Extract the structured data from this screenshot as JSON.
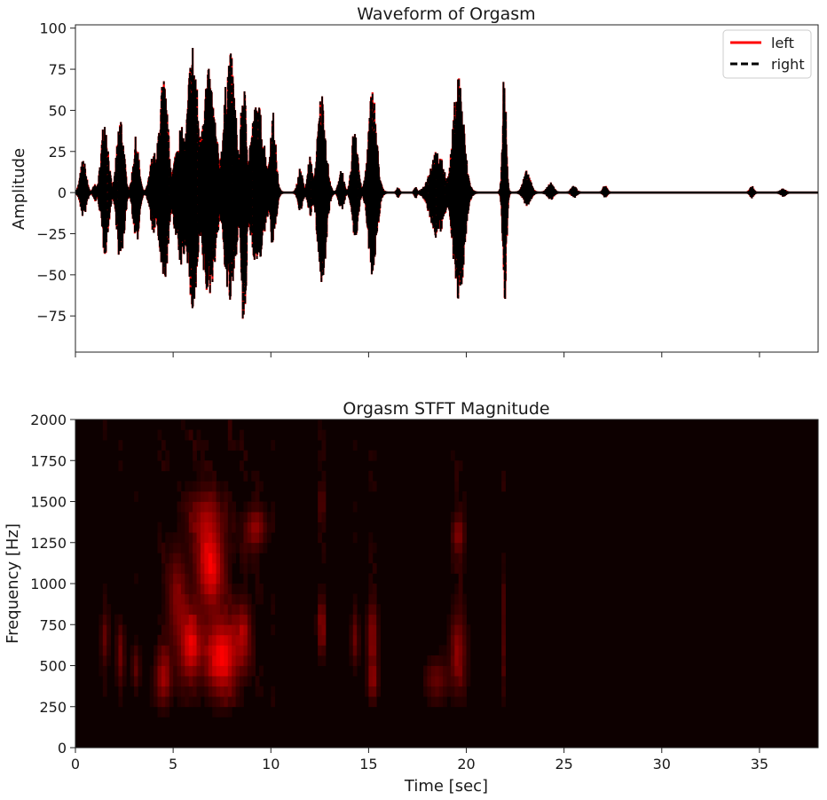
{
  "chart_data": [
    {
      "type": "line",
      "title": "Waveform of Orgasm",
      "xlabel": "",
      "ylabel": "Amplitude",
      "xlim": [
        0,
        38
      ],
      "ylim": [
        -97,
        102
      ],
      "x_ticks": [
        0,
        5,
        10,
        15,
        20,
        25,
        30,
        35
      ],
      "x_tick_labels_visible": false,
      "y_ticks": [
        100,
        75,
        50,
        25,
        0,
        -25,
        -50,
        -75
      ],
      "y_tick_labels": [
        "100",
        "75",
        "50",
        "25",
        "0",
        "−25",
        "−50",
        "−75"
      ],
      "legend": {
        "placement": "top-right",
        "entries": [
          "left",
          "right"
        ]
      },
      "grid": false,
      "series": [
        {
          "name": "left",
          "color": "#ff0000",
          "style": "solid",
          "bursts": [
            {
              "center": 0.4,
              "width": 0.25,
              "amp_pos": 20,
              "amp_neg": 15
            },
            {
              "center": 1.0,
              "width": 0.15,
              "amp_pos": 5,
              "amp_neg": 5
            },
            {
              "center": 1.5,
              "width": 0.3,
              "amp_pos": 47,
              "amp_neg": 38
            },
            {
              "center": 2.3,
              "width": 0.3,
              "amp_pos": 48,
              "amp_neg": 45
            },
            {
              "center": 3.1,
              "width": 0.25,
              "amp_pos": 34,
              "amp_neg": 33
            },
            {
              "center": 4.0,
              "width": 0.3,
              "amp_pos": 25,
              "amp_neg": 25
            },
            {
              "center": 4.5,
              "width": 0.4,
              "amp_pos": 70,
              "amp_neg": 58
            },
            {
              "center": 5.4,
              "width": 0.5,
              "amp_pos": 40,
              "amp_neg": 45
            },
            {
              "center": 6.0,
              "width": 0.45,
              "amp_pos": 93,
              "amp_neg": 75
            },
            {
              "center": 6.8,
              "width": 0.6,
              "amp_pos": 75,
              "amp_neg": 65
            },
            {
              "center": 7.9,
              "width": 0.5,
              "amp_pos": 87,
              "amp_neg": 70
            },
            {
              "center": 8.6,
              "width": 0.25,
              "amp_pos": 70,
              "amp_neg": 88
            },
            {
              "center": 9.3,
              "width": 0.6,
              "amp_pos": 55,
              "amp_neg": 45
            },
            {
              "center": 10.1,
              "width": 0.25,
              "amp_pos": 50,
              "amp_neg": 35
            },
            {
              "center": 11.5,
              "width": 0.2,
              "amp_pos": 15,
              "amp_neg": 12
            },
            {
              "center": 12.0,
              "width": 0.2,
              "amp_pos": 22,
              "amp_neg": 15
            },
            {
              "center": 12.6,
              "width": 0.35,
              "amp_pos": 62,
              "amp_neg": 58
            },
            {
              "center": 13.6,
              "width": 0.2,
              "amp_pos": 15,
              "amp_neg": 12
            },
            {
              "center": 14.3,
              "width": 0.25,
              "amp_pos": 45,
              "amp_neg": 30
            },
            {
              "center": 15.2,
              "width": 0.35,
              "amp_pos": 65,
              "amp_neg": 55
            },
            {
              "center": 16.5,
              "width": 0.1,
              "amp_pos": 3,
              "amp_neg": 3
            },
            {
              "center": 17.4,
              "width": 0.1,
              "amp_pos": 3,
              "amp_neg": 3
            },
            {
              "center": 18.5,
              "width": 0.6,
              "amp_pos": 25,
              "amp_neg": 28
            },
            {
              "center": 19.6,
              "width": 0.45,
              "amp_pos": 75,
              "amp_neg": 70
            },
            {
              "center": 21.95,
              "width": 0.15,
              "amp_pos": 80,
              "amp_neg": 76
            },
            {
              "center": 23.1,
              "width": 0.3,
              "amp_pos": 13,
              "amp_neg": 8
            },
            {
              "center": 24.3,
              "width": 0.25,
              "amp_pos": 6,
              "amp_neg": 4
            },
            {
              "center": 25.5,
              "width": 0.2,
              "amp_pos": 4,
              "amp_neg": 3
            },
            {
              "center": 27.1,
              "width": 0.15,
              "amp_pos": 5,
              "amp_neg": 3
            },
            {
              "center": 34.6,
              "width": 0.15,
              "amp_pos": 4,
              "amp_neg": 3
            },
            {
              "center": 36.2,
              "width": 0.2,
              "amp_pos": 2,
              "amp_neg": 2
            }
          ]
        },
        {
          "name": "right",
          "color": "#000000",
          "style": "dashed",
          "bursts": "same as left"
        }
      ]
    },
    {
      "type": "heatmap",
      "title": "Orgasm STFT Magnitude",
      "xlabel": "Time [sec]",
      "ylabel": "Frequency [Hz]",
      "xlim": [
        0,
        38
      ],
      "ylim": [
        0,
        2000
      ],
      "x_ticks": [
        0,
        5,
        10,
        15,
        20,
        25,
        30,
        35
      ],
      "x_tick_labels": [
        "0",
        "5",
        "10",
        "15",
        "20",
        "25",
        "30",
        "35"
      ],
      "y_ticks": [
        0,
        250,
        500,
        750,
        1000,
        1250,
        1500,
        1750,
        2000
      ],
      "y_tick_labels": [
        "0",
        "250",
        "500",
        "750",
        "1000",
        "1250",
        "1500",
        "1750",
        "2000"
      ],
      "colormap": {
        "low": "#0d0000",
        "high": "#ff0000"
      },
      "grid": false,
      "hotspots": [
        {
          "t": 6.9,
          "f": 1120,
          "dt": 0.7,
          "df": 260,
          "mag": 0.9
        },
        {
          "t": 7.5,
          "f": 560,
          "dt": 0.8,
          "df": 220,
          "mag": 1.0
        },
        {
          "t": 5.9,
          "f": 620,
          "dt": 0.5,
          "df": 200,
          "mag": 0.85
        },
        {
          "t": 4.5,
          "f": 430,
          "dt": 0.4,
          "df": 160,
          "mag": 0.6
        },
        {
          "t": 5.2,
          "f": 900,
          "dt": 0.5,
          "df": 300,
          "mag": 0.45
        },
        {
          "t": 6.6,
          "f": 1430,
          "dt": 0.8,
          "df": 150,
          "mag": 0.4
        },
        {
          "t": 9.2,
          "f": 1340,
          "dt": 0.5,
          "df": 120,
          "mag": 0.55
        },
        {
          "t": 8.6,
          "f": 700,
          "dt": 0.4,
          "df": 200,
          "mag": 0.5
        },
        {
          "t": 1.5,
          "f": 660,
          "dt": 0.2,
          "df": 160,
          "mag": 0.35
        },
        {
          "t": 2.3,
          "f": 550,
          "dt": 0.2,
          "df": 200,
          "mag": 0.35
        },
        {
          "t": 3.1,
          "f": 500,
          "dt": 0.2,
          "df": 120,
          "mag": 0.3
        },
        {
          "t": 12.6,
          "f": 750,
          "dt": 0.2,
          "df": 180,
          "mag": 0.45
        },
        {
          "t": 12.6,
          "f": 1500,
          "dt": 0.2,
          "df": 120,
          "mag": 0.3
        },
        {
          "t": 14.3,
          "f": 650,
          "dt": 0.2,
          "df": 150,
          "mag": 0.35
        },
        {
          "t": 15.2,
          "f": 700,
          "dt": 0.25,
          "df": 200,
          "mag": 0.5
        },
        {
          "t": 15.2,
          "f": 400,
          "dt": 0.25,
          "df": 120,
          "mag": 0.45
        },
        {
          "t": 18.5,
          "f": 420,
          "dt": 0.6,
          "df": 120,
          "mag": 0.35
        },
        {
          "t": 19.6,
          "f": 1300,
          "dt": 0.3,
          "df": 120,
          "mag": 0.5
        },
        {
          "t": 19.6,
          "f": 600,
          "dt": 0.4,
          "df": 250,
          "mag": 0.45
        },
        {
          "t": 21.95,
          "f": 700,
          "dt": 0.1,
          "df": 300,
          "mag": 0.3
        }
      ]
    }
  ]
}
